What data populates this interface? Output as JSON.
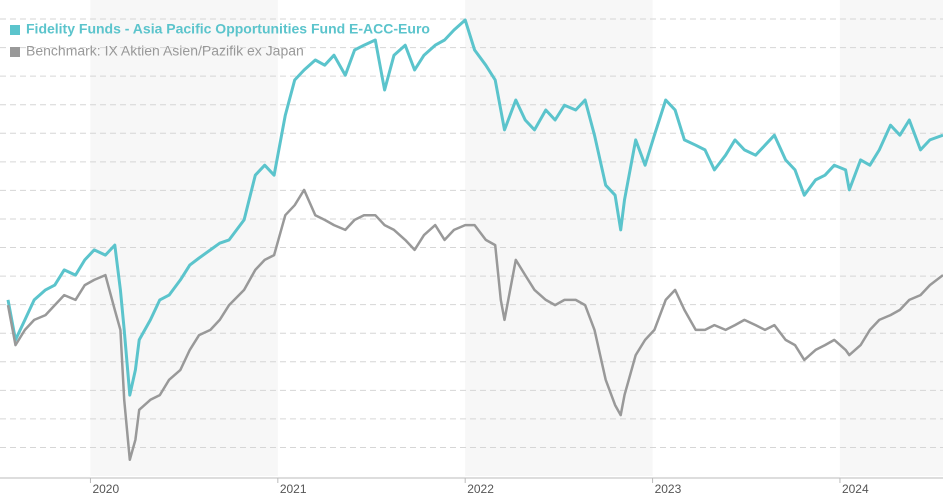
{
  "chart_data": {
    "type": "line",
    "x": [
      2019.56,
      2019.6,
      2019.65,
      2019.7,
      2019.76,
      2019.81,
      2019.86,
      2019.92,
      2019.97,
      2020.02,
      2020.08,
      2020.13,
      2020.16,
      2020.18,
      2020.21,
      2020.24,
      2020.26,
      2020.32,
      2020.37,
      2020.42,
      2020.48,
      2020.53,
      2020.58,
      2020.64,
      2020.69,
      2020.74,
      2020.82,
      2020.88,
      2020.93,
      2020.98,
      2021.04,
      2021.09,
      2021.14,
      2021.2,
      2021.25,
      2021.3,
      2021.36,
      2021.41,
      2021.46,
      2021.52,
      2021.57,
      2021.62,
      2021.68,
      2021.73,
      2021.78,
      2021.84,
      2021.89,
      2021.94,
      2022.0,
      2022.05,
      2022.11,
      2022.16,
      2022.19,
      2022.21,
      2022.27,
      2022.32,
      2022.37,
      2022.43,
      2022.48,
      2022.53,
      2022.59,
      2022.64,
      2022.69,
      2022.75,
      2022.8,
      2022.83,
      2022.85,
      2022.91,
      2022.96,
      2023.01,
      2023.07,
      2023.12,
      2023.17,
      2023.23,
      2023.28,
      2023.33,
      2023.39,
      2023.44,
      2023.49,
      2023.55,
      2023.6,
      2023.65,
      2023.71,
      2023.76,
      2023.81,
      2023.87,
      2023.92,
      2023.97,
      2024.03,
      2024.05,
      2024.11,
      2024.16,
      2024.21,
      2024.27,
      2024.32,
      2024.37,
      2024.43,
      2024.48,
      2024.55
    ],
    "series": [
      {
        "name": "Fidelity Funds - Asia Pacific Opportunities Fund E-ACC-Euro",
        "color": "#5bc4cc",
        "values": [
          37.0,
          28.6,
          32.8,
          37.0,
          39.1,
          40.1,
          43.3,
          42.2,
          45.4,
          47.5,
          46.4,
          48.5,
          39.1,
          30.7,
          17.0,
          22.3,
          28.6,
          32.8,
          37.0,
          38.0,
          41.2,
          44.3,
          45.8,
          47.5,
          48.9,
          49.6,
          53.8,
          63.2,
          65.3,
          63.2,
          75.8,
          83.2,
          85.3,
          87.4,
          86.3,
          88.4,
          84.2,
          89.5,
          90.5,
          91.6,
          81.1,
          88.4,
          90.5,
          85.3,
          88.4,
          90.5,
          91.6,
          93.7,
          95.8,
          89.5,
          86.3,
          83.2,
          76.9,
          72.7,
          79.0,
          74.8,
          72.7,
          76.9,
          74.8,
          77.9,
          76.9,
          79.0,
          71.6,
          61.1,
          59.0,
          51.7,
          58.0,
          70.6,
          65.3,
          71.6,
          79.0,
          76.9,
          70.6,
          69.5,
          68.5,
          64.3,
          67.4,
          70.6,
          68.5,
          67.4,
          69.5,
          71.6,
          66.4,
          64.3,
          59.0,
          62.2,
          63.2,
          65.3,
          64.3,
          60.1,
          66.4,
          65.3,
          68.5,
          73.7,
          71.6,
          74.8,
          68.5,
          70.6,
          71.6
        ]
      },
      {
        "name": "Benchmark: IX Aktien Asien/Pazifik ex Japan",
        "color": "#999999",
        "values": [
          35.9,
          27.5,
          30.7,
          32.8,
          33.8,
          35.9,
          38.0,
          37.0,
          40.1,
          41.2,
          42.2,
          34.9,
          30.7,
          16.0,
          3.4,
          7.6,
          13.9,
          16.0,
          17.0,
          20.2,
          22.3,
          26.5,
          29.6,
          30.7,
          32.8,
          35.9,
          39.1,
          43.3,
          45.4,
          46.4,
          54.8,
          56.9,
          60.1,
          54.8,
          53.8,
          52.7,
          51.7,
          53.8,
          54.8,
          54.8,
          52.7,
          51.7,
          49.6,
          47.5,
          50.6,
          52.7,
          49.6,
          51.7,
          52.7,
          52.7,
          49.6,
          48.5,
          37.0,
          32.8,
          45.4,
          42.2,
          39.1,
          37.0,
          35.9,
          37.0,
          37.0,
          35.9,
          30.7,
          20.2,
          14.9,
          12.8,
          17.0,
          25.4,
          28.6,
          30.7,
          37.0,
          39.1,
          34.9,
          30.7,
          30.7,
          31.7,
          30.7,
          31.7,
          32.8,
          31.7,
          30.7,
          31.7,
          28.6,
          27.5,
          24.4,
          26.5,
          27.5,
          28.6,
          26.5,
          25.4,
          27.5,
          30.7,
          32.8,
          33.8,
          34.9,
          37.0,
          38.0,
          40.1,
          42.2
        ]
      }
    ],
    "xlim": [
      2019.56,
      2024.55
    ],
    "xticks": [
      2020,
      2021,
      2022,
      2023,
      2024
    ],
    "ylim": [
      0,
      100
    ],
    "yticks": [
      6,
      12,
      18,
      24,
      30,
      36,
      42,
      48,
      54,
      60,
      66,
      72,
      78,
      84,
      90,
      96
    ],
    "grid": true,
    "legend": "top-left"
  }
}
